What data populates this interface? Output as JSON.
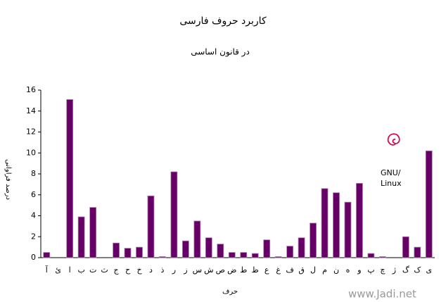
{
  "chart_data": {
    "type": "bar",
    "title": "کاربرد حروف فارسی",
    "subtitle": "در قانون اساسی",
    "y_label": "درصد فراوانی",
    "x_label": "حرف",
    "annotations": [
      "GNU/",
      "Linux",
      "www.Jadi.net"
    ],
    "categories": [
      "آ",
      "ئ",
      "ا",
      "ب",
      "ت",
      "ث",
      "ج",
      "ح",
      "خ",
      "د",
      "ذ",
      "ر",
      "ز",
      "س",
      "ش",
      "ص",
      "ض",
      "ط",
      "ظ",
      "ع",
      "غ",
      "ف",
      "ق",
      "ل",
      "م",
      "ن",
      "ه",
      "و",
      "پ",
      "چ",
      "ژ",
      "گ",
      "ک",
      "ی"
    ],
    "values": [
      0.5,
      0,
      15.1,
      3.9,
      4.8,
      0,
      1.4,
      0.9,
      1.0,
      5.9,
      0.1,
      8.2,
      1.6,
      3.5,
      1.9,
      1.3,
      0.5,
      0.5,
      0.4,
      1.7,
      0.1,
      1.1,
      1.9,
      3.3,
      6.6,
      6.2,
      5.3,
      7.1,
      0.4,
      0.1,
      0,
      2.0,
      1.0,
      10.2
    ],
    "color": "#660066",
    "ylim": [
      0,
      16
    ],
    "yticks": [
      0,
      2,
      4,
      6,
      8,
      10,
      12,
      14,
      16
    ],
    "grid": false
  }
}
